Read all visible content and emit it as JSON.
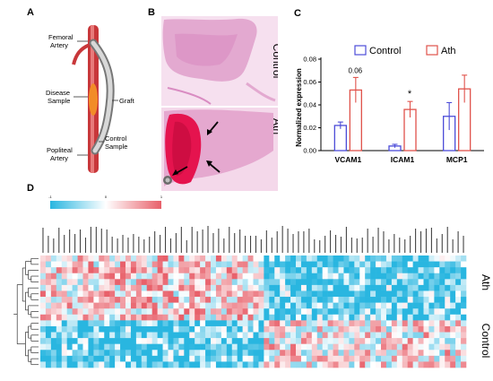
{
  "panels": {
    "a": "A",
    "b": "B",
    "c": "C",
    "d": "D"
  },
  "panel_a": {
    "femoral": [
      "Femoral",
      "Artery"
    ],
    "disease": [
      "Disease",
      "Sample"
    ],
    "graft": "Graft",
    "control": [
      "Control",
      "Sample"
    ],
    "popliteal": [
      "Popliteal",
      "Artery"
    ]
  },
  "panel_b": {
    "top_label": "Control",
    "bottom_label": "Ath"
  },
  "chart_data": {
    "type": "bar",
    "categories": [
      "VCAM1",
      "ICAM1",
      "MCP1"
    ],
    "series": [
      {
        "name": "Control",
        "values": [
          0.022,
          0.004,
          0.03
        ],
        "errors": [
          0.003,
          0.0015,
          0.012
        ],
        "color": "#4c4cd8"
      },
      {
        "name": "Ath",
        "values": [
          0.053,
          0.036,
          0.054
        ],
        "errors": [
          0.011,
          0.007,
          0.012
        ],
        "color": "#e0524a"
      }
    ],
    "ylabel": "Normalized expression",
    "yticks": [
      "0.00",
      "0.02",
      "0.04",
      "0.06",
      "0.08"
    ],
    "ylim": [
      0,
      0.08
    ],
    "annotations": [
      {
        "category": "VCAM1",
        "text": "0.06"
      },
      {
        "category": "ICAM1",
        "text": "*"
      }
    ],
    "legend_position": "top"
  },
  "heatmap": {
    "scale_min": "-1",
    "scale_mid": "0",
    "scale_max": "1",
    "group_top": "Ath",
    "group_bottom": "Control",
    "colors": {
      "low": "#29b6e0",
      "mid": "#ffffff",
      "high": "#e8606a"
    }
  }
}
